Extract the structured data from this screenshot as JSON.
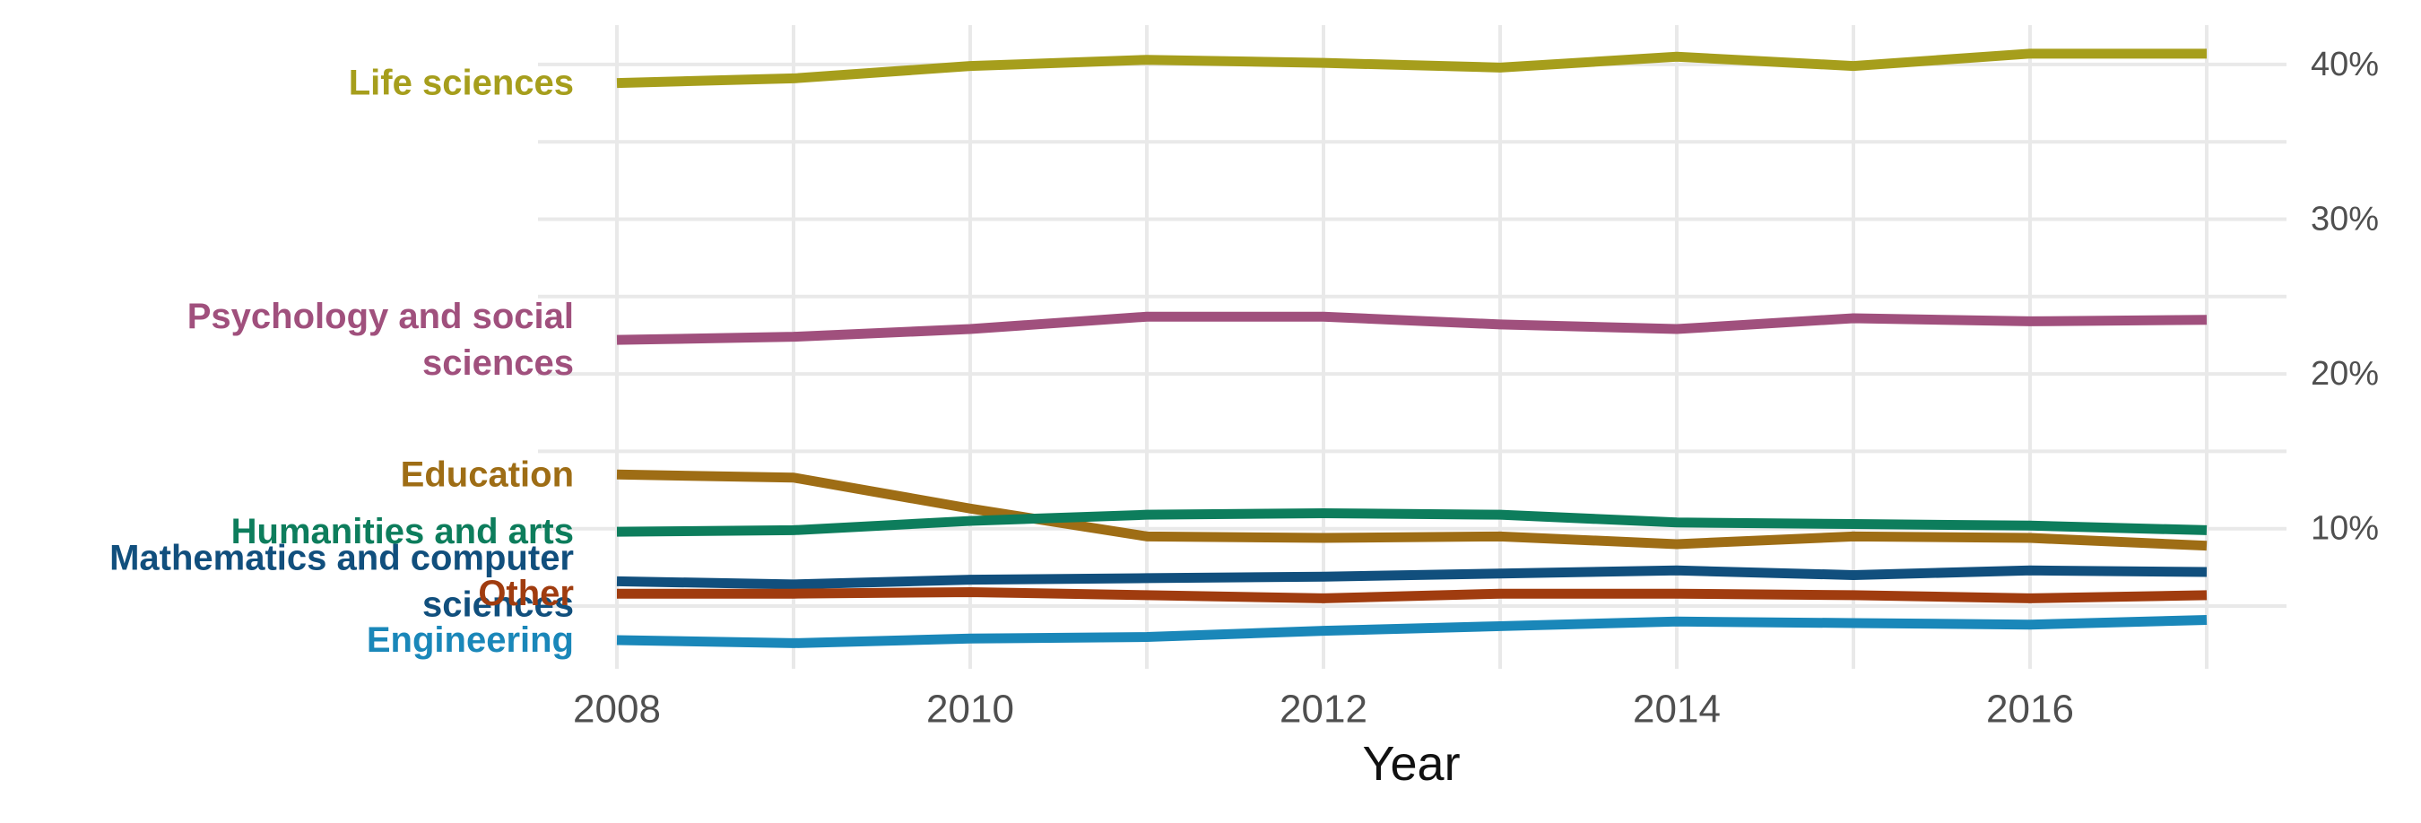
{
  "chart": {
    "background": "#ffffff",
    "gridline_color": "#e9e9e9",
    "tick_label_color": "#4f4f4f",
    "axis_title_color": "#111111",
    "y_axis": {
      "side": "right",
      "tick_labels": [
        "40%",
        "30%",
        "20%",
        "10%"
      ],
      "tick_values": [
        40,
        30,
        20,
        10
      ],
      "grid_values": [
        5,
        10,
        15,
        20,
        25,
        30,
        35,
        40
      ]
    },
    "x_axis": {
      "label": "Year",
      "tick_labels": [
        "2008",
        "2010",
        "2012",
        "2014",
        "2016"
      ],
      "tick_values": [
        2008,
        2010,
        2012,
        2014,
        2016
      ],
      "grid_values": [
        2008,
        2009,
        2010,
        2011,
        2012,
        2013,
        2014,
        2015,
        2016,
        2017
      ]
    }
  },
  "chart_data": {
    "type": "line",
    "title": "",
    "xlabel": "Year",
    "ylabel": "",
    "x": [
      2008,
      2009,
      2010,
      2011,
      2012,
      2013,
      2014,
      2015,
      2016,
      2017
    ],
    "xlim": [
      2008,
      2017
    ],
    "ylim": [
      0.9,
      42.5
    ],
    "grid": "on",
    "legend_position": "left-of-lines",
    "unit": "%",
    "series": [
      {
        "name": "Life sciences",
        "label_lines": [
          "Life sciences"
        ],
        "color": "#A69E1C",
        "values": [
          38.8,
          39.1,
          39.9,
          40.3,
          40.1,
          39.8,
          40.5,
          39.9,
          40.7,
          40.7
        ]
      },
      {
        "name": "Psychology and social sciences",
        "label_lines": [
          "Psychology and social",
          "sciences"
        ],
        "color": "#A0507D",
        "values": [
          22.2,
          22.4,
          22.9,
          23.7,
          23.7,
          23.2,
          22.9,
          23.6,
          23.4,
          23.5
        ]
      },
      {
        "name": "Education",
        "label_lines": [
          "Education"
        ],
        "color": "#9E6D15",
        "values": [
          13.5,
          13.3,
          11.3,
          9.5,
          9.4,
          9.5,
          9.0,
          9.5,
          9.4,
          8.9
        ]
      },
      {
        "name": "Humanities and arts",
        "label_lines": [
          "Humanities and arts"
        ],
        "color": "#0D7D5C",
        "values": [
          9.8,
          9.9,
          10.5,
          10.9,
          11.0,
          10.9,
          10.4,
          10.3,
          10.2,
          9.9
        ]
      },
      {
        "name": "Mathematics and computer sciences",
        "label_lines": [
          "Mathematics and computer",
          "sciences"
        ],
        "color": "#114F7D",
        "values": [
          6.6,
          6.4,
          6.7,
          6.8,
          6.9,
          7.1,
          7.3,
          7.0,
          7.3,
          7.2
        ]
      },
      {
        "name": "Other",
        "label_lines": [
          "Other"
        ],
        "color": "#A03C0F",
        "values": [
          5.8,
          5.8,
          5.9,
          5.7,
          5.5,
          5.8,
          5.8,
          5.7,
          5.5,
          5.7
        ]
      },
      {
        "name": "Engineering",
        "label_lines": [
          "Engineering"
        ],
        "color": "#1A87B9",
        "values": [
          2.8,
          2.6,
          2.9,
          3.0,
          3.4,
          3.7,
          4.0,
          3.9,
          3.8,
          4.1
        ]
      }
    ]
  }
}
